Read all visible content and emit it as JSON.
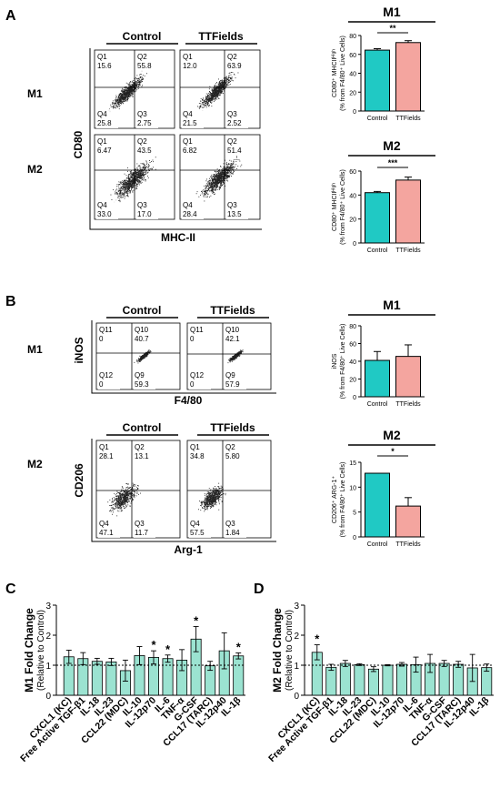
{
  "panels": {
    "A": "A",
    "B": "B",
    "C": "C",
    "D": "D"
  },
  "colors": {
    "control": "#20c9c4",
    "ttfields": "#f4a59f",
    "cytokine": "#9be3d1",
    "ink": "#000000"
  },
  "panelA": {
    "group_labels": [
      "Control",
      "TTFields"
    ],
    "row_labels": [
      "M1",
      "M2"
    ],
    "y_axis": "CD80",
    "x_axis": "MHC-II",
    "plots": [
      {
        "quads": [
          {
            "name": "Q1",
            "value": "15.6"
          },
          {
            "name": "Q2",
            "value": "55.8"
          },
          {
            "name": "Q4",
            "value": "25.8"
          },
          {
            "name": "Q3",
            "value": "2.75"
          }
        ]
      },
      {
        "quads": [
          {
            "name": "Q1",
            "value": "12.0"
          },
          {
            "name": "Q2",
            "value": "63.9"
          },
          {
            "name": "Q4",
            "value": "21.5"
          },
          {
            "name": "Q3",
            "value": "2.52"
          }
        ]
      },
      {
        "quads": [
          {
            "name": "Q1",
            "value": "6.47"
          },
          {
            "name": "Q2",
            "value": "43.5"
          },
          {
            "name": "Q4",
            "value": "33.0"
          },
          {
            "name": "Q3",
            "value": "17.0"
          }
        ]
      },
      {
        "quads": [
          {
            "name": "Q1",
            "value": "6.82"
          },
          {
            "name": "Q2",
            "value": "51.4"
          },
          {
            "name": "Q4",
            "value": "28.4"
          },
          {
            "name": "Q3",
            "value": "13.5"
          }
        ]
      }
    ]
  },
  "panelB": {
    "group_labels": [
      "Control",
      "TTFields"
    ],
    "row_labels": [
      "M1",
      "M2"
    ],
    "m1_y_axis": "iNOS",
    "m1_x_axis": "F4/80",
    "m2_y_axis": "CD206",
    "m2_x_axis": "Arg-1",
    "plots": [
      {
        "quads": [
          {
            "name": "Q11",
            "value": "0"
          },
          {
            "name": "Q10",
            "value": "40.7"
          },
          {
            "name": "Q12",
            "value": "0"
          },
          {
            "name": "Q9",
            "value": "59.3"
          }
        ]
      },
      {
        "quads": [
          {
            "name": "Q11",
            "value": "0"
          },
          {
            "name": "Q10",
            "value": "42.1"
          },
          {
            "name": "Q12",
            "value": "0"
          },
          {
            "name": "Q9",
            "value": "57.9"
          }
        ]
      },
      {
        "quads": [
          {
            "name": "Q1",
            "value": "28.1"
          },
          {
            "name": "Q2",
            "value": "13.1"
          },
          {
            "name": "Q4",
            "value": "47.1"
          },
          {
            "name": "Q3",
            "value": "11.7"
          }
        ]
      },
      {
        "quads": [
          {
            "name": "Q1",
            "value": "34.8"
          },
          {
            "name": "Q2",
            "value": "5.80"
          },
          {
            "name": "Q4",
            "value": "57.5"
          },
          {
            "name": "Q3",
            "value": "1.84"
          }
        ]
      }
    ]
  },
  "chart_data": [
    {
      "type": "bar",
      "title": "M1",
      "categories": [
        "Control",
        "TTFields"
      ],
      "values": [
        64.5,
        72.5
      ],
      "errors": [
        1.5,
        2
      ],
      "ylabel_line1": "CD80⁺ MHCIIᴴⁱᵍʰ",
      "ylabel_line2": "(% from F4/80⁺ Live Cells)",
      "ylim": [
        0,
        80
      ],
      "yticks": [
        "0",
        "20",
        "40",
        "60",
        "80"
      ],
      "significance": "**"
    },
    {
      "type": "bar",
      "title": "M2",
      "categories": [
        "Control",
        "TTFields"
      ],
      "values": [
        42,
        52.5
      ],
      "errors": [
        1,
        2.5
      ],
      "ylabel_line1": "CD80⁺ MHCIIᴴⁱᵍʰ",
      "ylabel_line2": "(% from F4/80⁺ Live Cells)",
      "ylim": [
        0,
        60
      ],
      "yticks": [
        "0",
        "20",
        "40",
        "60"
      ],
      "significance": "***"
    },
    {
      "type": "bar",
      "title": "M1",
      "categories": [
        "Control",
        "TTFields"
      ],
      "values": [
        41,
        45.5
      ],
      "errors": [
        10,
        13
      ],
      "ylabel_line1": "iNOS",
      "ylabel_line2": "(% from F4/80⁺ Live Cells)",
      "ylim": [
        0,
        80
      ],
      "yticks": [
        "0",
        "20",
        "40",
        "60",
        "80"
      ],
      "significance": ""
    },
    {
      "type": "bar",
      "title": "M2",
      "categories": [
        "Control",
        "TTFields"
      ],
      "values": [
        12.8,
        6.2
      ],
      "errors": [
        0,
        1.7
      ],
      "ylabel_line1": "CD206⁺ ARG-1⁺",
      "ylabel_line2": "(% from F4/80⁺ Live Cells)",
      "ylim": [
        0,
        15
      ],
      "yticks": [
        "0",
        "5",
        "10",
        "15"
      ],
      "significance": "*"
    },
    {
      "type": "bar",
      "ylabel_line1": "M1 Fold Change",
      "ylabel_line2": "(Relative to Control)",
      "ylim": [
        0,
        3
      ],
      "yticks": [
        "0",
        "1",
        "2",
        "3"
      ],
      "reference_line": 1,
      "categories": [
        "CXCL1 (KC)",
        "Free Active TGF-β1",
        "IL-18",
        "IL-23",
        "CCL22 (MDC)",
        "IL-10",
        "IL-12p70",
        "IL-6",
        "TNF-α",
        "G-CSF",
        "CCL17 (TARC)",
        "IL-12p40",
        "IL-1β"
      ],
      "values": [
        1.28,
        1.22,
        1.13,
        1.11,
        0.82,
        1.32,
        1.26,
        1.22,
        1.17,
        1.87,
        0.98,
        1.48,
        1.31
      ],
      "errors": [
        0.22,
        0.2,
        0.1,
        0.12,
        0.35,
        0.3,
        0.22,
        0.12,
        0.35,
        0.42,
        0.15,
        0.6,
        0.1
      ],
      "significance": [
        "",
        "",
        "",
        "",
        "",
        "",
        "*",
        "*",
        "",
        "*",
        "",
        "",
        "*"
      ]
    },
    {
      "type": "bar",
      "ylabel_line1": "M2 Fold Change",
      "ylabel_line2": "(Relative to Control)",
      "ylim": [
        0,
        3
      ],
      "yticks": [
        "0",
        "1",
        "2",
        "3"
      ],
      "reference_line": 1,
      "categories": [
        "CXCL1 (KC)",
        "Free Active TGF-β1",
        "IL-18",
        "IL-23",
        "CCL22 (MDC)",
        "IL-10",
        "IL-12p70",
        "IL-6",
        "TNF-α",
        "G-CSF",
        "CCL17 (TARC)",
        "IL-12p40",
        "IL-1β"
      ],
      "values": [
        1.43,
        0.93,
        1.06,
        1.02,
        0.87,
        1.0,
        1.03,
        1.02,
        1.06,
        1.06,
        1.03,
        0.91,
        0.92
      ],
      "errors": [
        0.25,
        0.1,
        0.1,
        0.03,
        0.08,
        0.02,
        0.06,
        0.25,
        0.3,
        0.1,
        0.1,
        0.45,
        0.12
      ],
      "significance": [
        "*",
        "",
        "",
        "",
        "",
        "",
        "",
        "",
        "",
        "",
        "",
        "",
        ""
      ]
    }
  ]
}
